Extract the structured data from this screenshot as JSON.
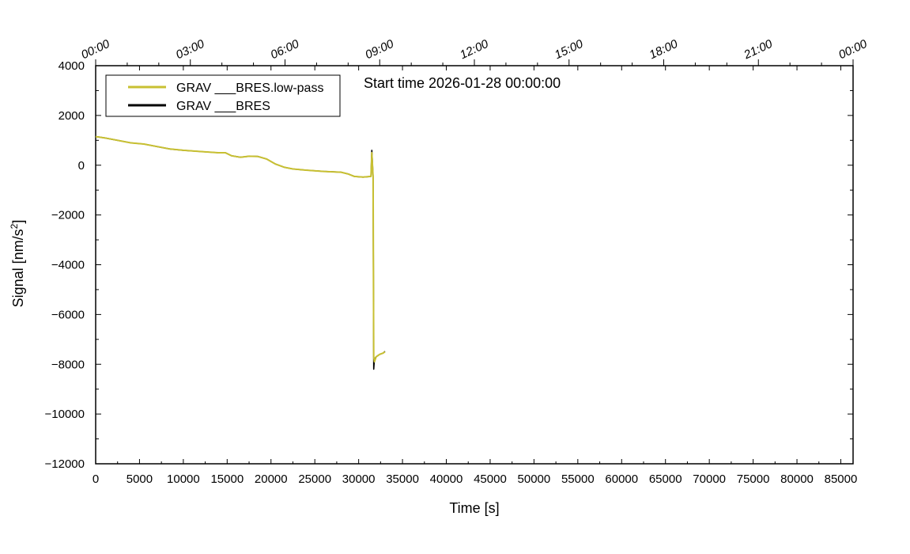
{
  "chart_data": {
    "type": "line",
    "xlabel": "Time [s]",
    "ylabel_main": "Signal [nm/s",
    "ylabel_sup": "2",
    "ylabel_tail": "]",
    "annotation": "Start time 2026-01-28 00:00:00",
    "xlim": [
      0,
      86400
    ],
    "ylim": [
      -12000,
      4000
    ],
    "x_ticks": [
      0,
      5000,
      10000,
      15000,
      20000,
      25000,
      30000,
      35000,
      40000,
      45000,
      50000,
      55000,
      60000,
      65000,
      70000,
      75000,
      80000,
      85000
    ],
    "y_ticks": [
      4000,
      2000,
      0,
      -2000,
      -4000,
      -6000,
      -8000,
      -10000,
      -12000
    ],
    "y_tick_labels": [
      "4000",
      "2000",
      "0",
      "−2000",
      "−4000",
      "−6000",
      "−8000",
      "−10000",
      "−12000"
    ],
    "top_ticks": [
      0,
      10800,
      21600,
      32400,
      43200,
      54000,
      64800,
      75600,
      86400
    ],
    "top_tick_labels": [
      "00:00",
      "03:00",
      "06:00",
      "09:00",
      "12:00",
      "15:00",
      "18:00",
      "21:00",
      "00:00"
    ],
    "legend_position": "top-left",
    "series": [
      {
        "name": "GRAV ___BRES.low-pass",
        "color": "#c8c032",
        "x": [
          0,
          1000,
          2500,
          4000,
          5500,
          7000,
          8500,
          10000,
          12000,
          14000,
          14800,
          15500,
          16500,
          17500,
          18500,
          19500,
          20500,
          21500,
          22500,
          24000,
          26000,
          28000,
          28800,
          29500,
          30500,
          31400,
          31500,
          31650,
          31720,
          31800,
          32000,
          32400,
          32800,
          33000
        ],
        "y": [
          1150,
          1100,
          1000,
          900,
          850,
          750,
          650,
          600,
          550,
          500,
          500,
          380,
          320,
          360,
          350,
          250,
          50,
          -80,
          -150,
          -200,
          -250,
          -280,
          -350,
          -450,
          -480,
          -450,
          500,
          -480,
          -7700,
          -7900,
          -7700,
          -7600,
          -7550,
          -7500
        ]
      },
      {
        "name": "GRAV ___BRES",
        "color": "#000000",
        "x": [
          0,
          1000,
          2500,
          4000,
          5500,
          7000,
          8500,
          10000,
          12000,
          14000,
          14800,
          15500,
          16500,
          17500,
          18500,
          19500,
          20500,
          21500,
          22500,
          24000,
          26000,
          28000,
          28800,
          29500,
          30500,
          31400,
          31500,
          31650,
          31720,
          31800,
          32000,
          32400,
          32800,
          33000
        ],
        "y": [
          1150,
          1100,
          1000,
          900,
          850,
          750,
          650,
          600,
          550,
          500,
          500,
          380,
          320,
          360,
          350,
          250,
          50,
          -80,
          -150,
          -200,
          -250,
          -280,
          -350,
          -450,
          -480,
          -450,
          600,
          -480,
          -8200,
          -7800,
          -7700,
          -7600,
          -7550,
          -7480
        ]
      }
    ]
  }
}
